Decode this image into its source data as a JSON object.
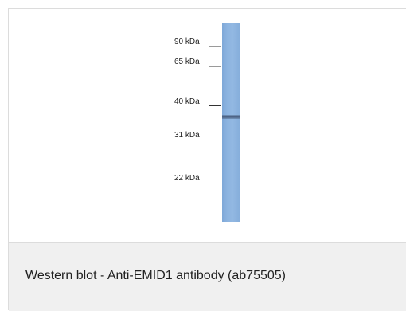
{
  "figure": {
    "markers": [
      {
        "label": "90 kDa"
      },
      {
        "label": "65 kDa"
      },
      {
        "label": "40 kDa"
      },
      {
        "label": "31 kDa"
      },
      {
        "label": "22 kDa"
      }
    ],
    "caption": "Western blot - Anti-EMID1 antibody (ab75505)"
  },
  "colors": {
    "lane": "#8db4e0",
    "band": "#4a5f80",
    "caption_background": "#f0f0f0"
  }
}
